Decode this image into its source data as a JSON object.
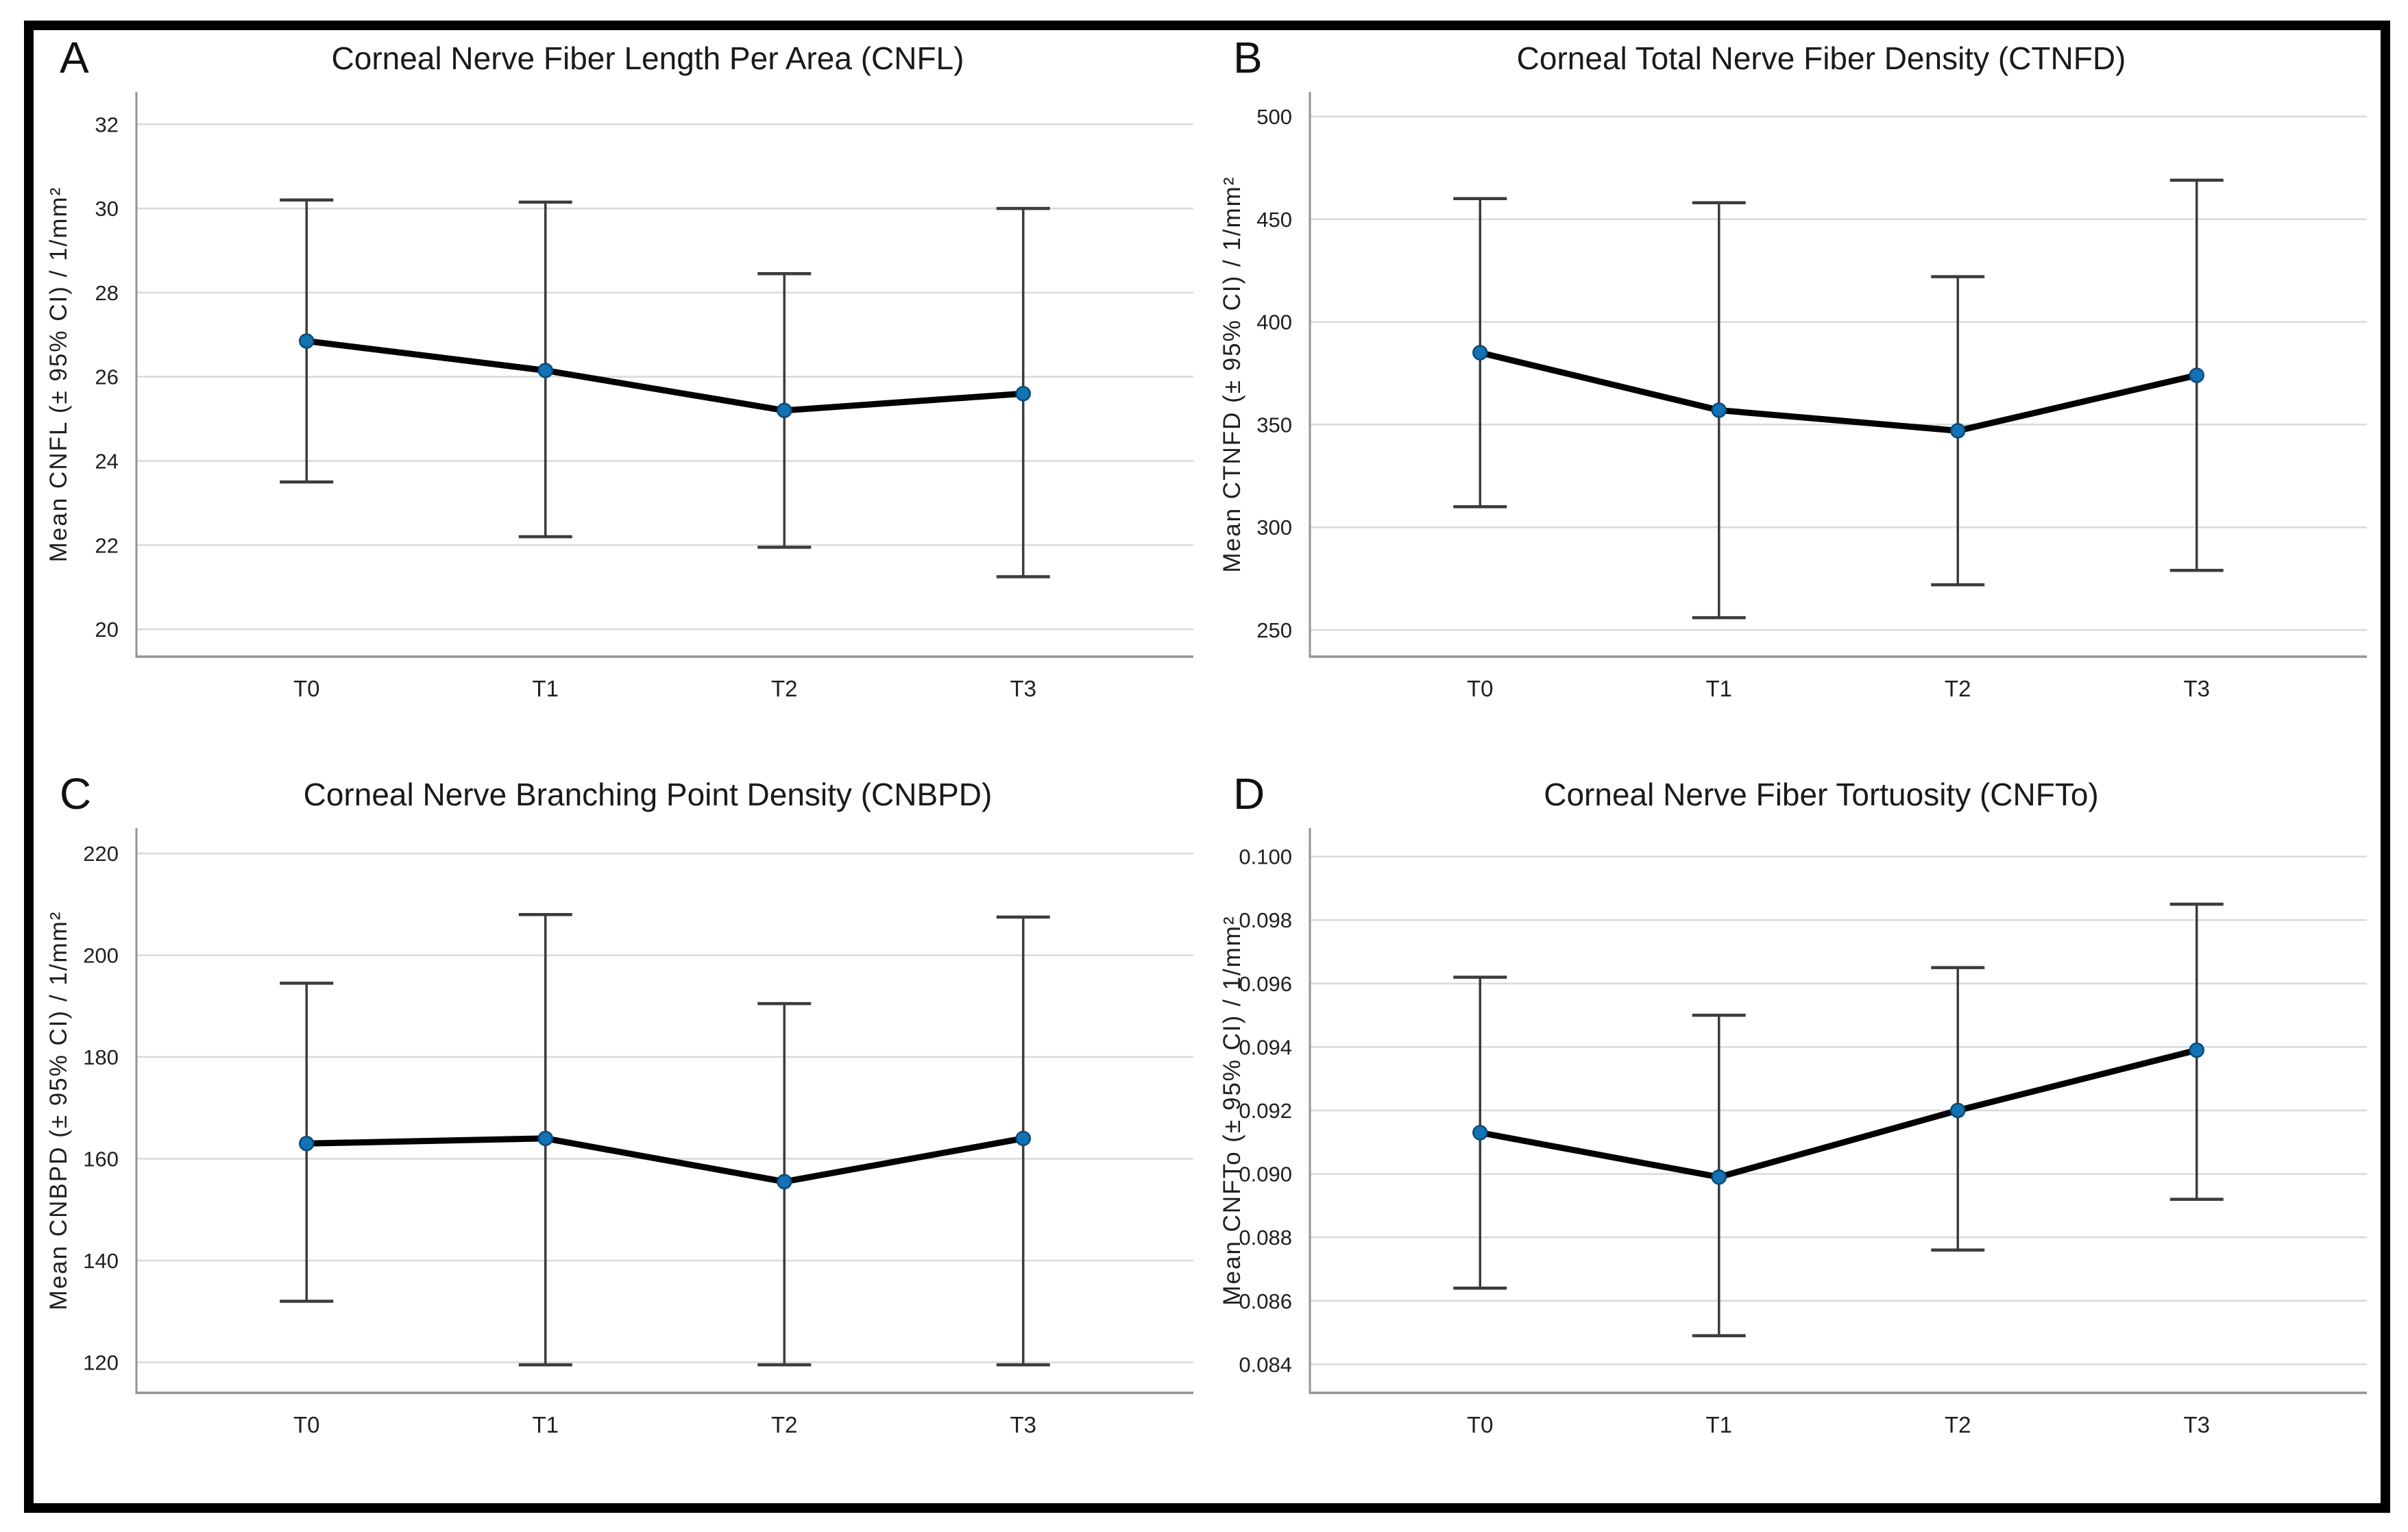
{
  "figure": {
    "description": "Four-panel line chart figure of corneal nerve morphology parameters with 95% confidence interval error bars over four time points"
  },
  "style": {
    "background": "#ffffff",
    "frame_border": "#000000",
    "marker_fill": "#1272b4",
    "marker_stroke": "#0b4a77",
    "line_color": "#000000",
    "error_color": "#3c3c3c",
    "grid_color": "#d9d9d9",
    "axis_color": "#949494",
    "text_color": "#1f1f1f"
  },
  "chart_data": [
    {
      "panel": "A",
      "type": "line",
      "title": "Corneal Nerve Fiber Length Per Area (CNFL)",
      "ylabel": "Mean CNFL (± 95% CI) / 1/mm²",
      "xlabel": "",
      "categories": [
        "T0",
        "T1",
        "T2",
        "T3"
      ],
      "means": [
        26.85,
        26.15,
        25.2,
        25.6
      ],
      "ci_low": [
        23.5,
        22.2,
        21.95,
        21.25
      ],
      "ci_high": [
        30.2,
        30.15,
        28.45,
        30.0
      ],
      "yticks": [
        20,
        22,
        24,
        26,
        28,
        30,
        32
      ],
      "ylim": [
        19.35,
        32.77
      ],
      "tick_decimals": 0,
      "grid": true,
      "legend": "none"
    },
    {
      "panel": "B",
      "type": "line",
      "title": "Corneal Total Nerve Fiber Density (CTNFD)",
      "ylabel": "Mean CTNFD (± 95% CI) / 1/mm²",
      "xlabel": "",
      "categories": [
        "T0",
        "T1",
        "T2",
        "T3"
      ],
      "means": [
        385,
        357,
        347,
        374
      ],
      "ci_low": [
        310,
        256,
        272,
        279
      ],
      "ci_high": [
        460,
        458,
        422,
        469
      ],
      "yticks": [
        250,
        300,
        350,
        400,
        450,
        500
      ],
      "ylim": [
        237,
        512
      ],
      "tick_decimals": 0,
      "grid": true,
      "legend": "none"
    },
    {
      "panel": "C",
      "type": "line",
      "title": "Corneal Nerve Branching Point Density (CNBPD)",
      "ylabel": "Mean CNBPD (± 95% CI) / 1/mm²",
      "xlabel": "",
      "categories": [
        "T0",
        "T1",
        "T2",
        "T3"
      ],
      "means": [
        163,
        164,
        155.5,
        164
      ],
      "ci_low": [
        132,
        119.5,
        119.5,
        119.5
      ],
      "ci_high": [
        194.5,
        208,
        190.5,
        207.5
      ],
      "yticks": [
        120,
        140,
        160,
        180,
        200,
        220
      ],
      "ylim": [
        114,
        225
      ],
      "tick_decimals": 0,
      "grid": true,
      "legend": "none"
    },
    {
      "panel": "D",
      "type": "line",
      "title": "Corneal Nerve Fiber Tortuosity (CNFTo)",
      "ylabel": "Mean CNFTo (± 95% CI) / 1/mm²",
      "xlabel": "",
      "categories": [
        "T0",
        "T1",
        "T2",
        "T3"
      ],
      "means": [
        0.0913,
        0.0899,
        0.092,
        0.0939
      ],
      "ci_low": [
        0.0864,
        0.0849,
        0.0876,
        0.0892
      ],
      "ci_high": [
        0.0962,
        0.095,
        0.0965,
        0.0985
      ],
      "yticks": [
        0.084,
        0.086,
        0.088,
        0.09,
        0.092,
        0.094,
        0.096,
        0.098,
        0.1
      ],
      "ylim": [
        0.0831,
        0.1009
      ],
      "tick_decimals": 3,
      "grid": true,
      "legend": "none"
    }
  ]
}
